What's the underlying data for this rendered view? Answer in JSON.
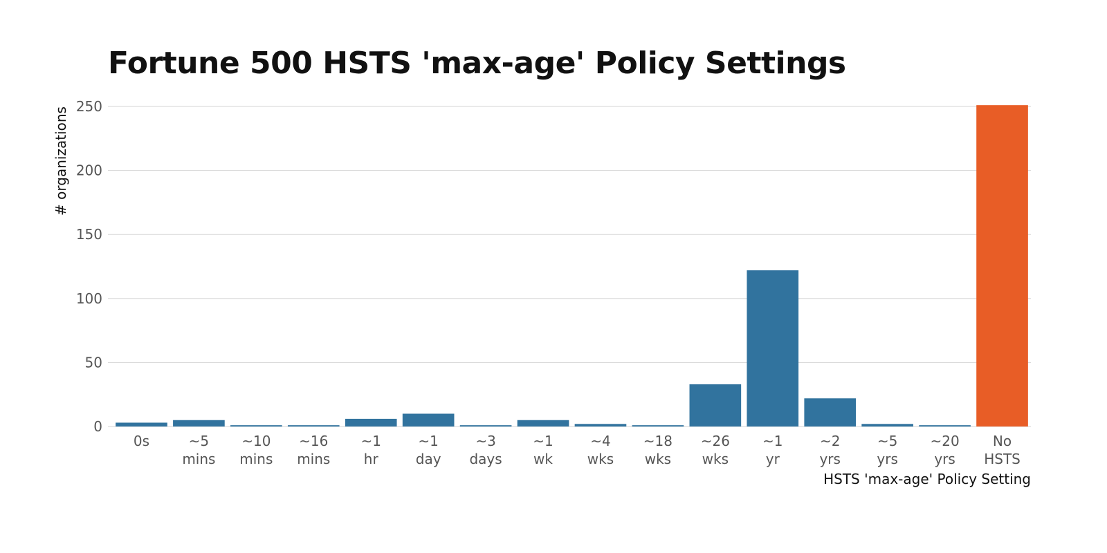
{
  "chart_data": {
    "type": "bar",
    "title": "Fortune 500 HSTS 'max-age' Policy Settings",
    "xlabel": "HSTS 'max-age' Policy Setting",
    "ylabel": "# organizations",
    "ylim": [
      0,
      250
    ],
    "yticks": [
      0,
      50,
      100,
      150,
      200,
      250
    ],
    "grid": true,
    "categories": [
      [
        "0s"
      ],
      [
        "~5",
        "mins"
      ],
      [
        "~10",
        "mins"
      ],
      [
        "~16",
        "mins"
      ],
      [
        "~1",
        "hr"
      ],
      [
        "~1",
        "day"
      ],
      [
        "~3",
        "days"
      ],
      [
        "~1",
        "wk"
      ],
      [
        "~4",
        "wks"
      ],
      [
        "~18",
        "wks"
      ],
      [
        "~26",
        "wks"
      ],
      [
        "~1",
        "yr"
      ],
      [
        "~2",
        "yrs"
      ],
      [
        "~5",
        "yrs"
      ],
      [
        "~20",
        "yrs"
      ],
      [
        "No",
        "HSTS"
      ]
    ],
    "values": [
      3,
      5,
      1,
      1,
      6,
      10,
      1,
      5,
      2,
      1,
      33,
      122,
      22,
      2,
      1,
      251
    ],
    "colors": {
      "default": "#31739e",
      "highlight": "#e85d26",
      "highlight_category": "No HSTS",
      "grid": "#d6d6d6"
    }
  }
}
